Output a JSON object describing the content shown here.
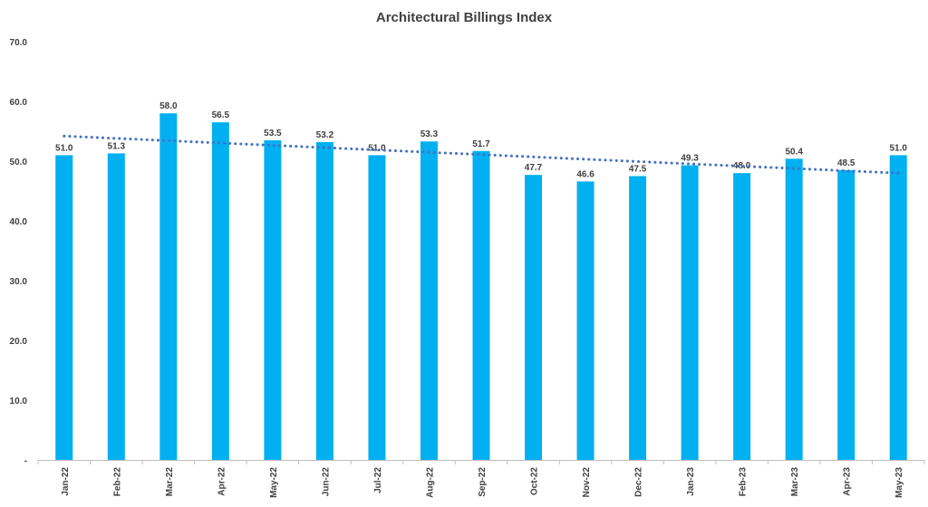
{
  "chart_data": {
    "type": "bar",
    "title": "Architectural Billings Index",
    "categories": [
      "Jan-22",
      "Feb-22",
      "Mar-22",
      "Apr-22",
      "May-22",
      "Jun-22",
      "Jul-22",
      "Aug-22",
      "Sep-22",
      "Oct-22",
      "Nov-22",
      "Dec-22",
      "Jan-23",
      "Feb-23",
      "Mar-23",
      "Apr-23",
      "May-23"
    ],
    "values": [
      51.0,
      51.3,
      58.0,
      56.5,
      53.5,
      53.2,
      51.0,
      53.3,
      51.7,
      47.7,
      46.6,
      47.5,
      49.3,
      48.0,
      50.4,
      48.5,
      51.0
    ],
    "value_labels": [
      "51.0",
      "51.3",
      "58.0",
      "56.5",
      "53.5",
      "53.2",
      "51.0",
      "53.3",
      "51.7",
      "47.7",
      "46.6",
      "47.5",
      "49.3",
      "48.0",
      "50.4",
      "48.5",
      "51.0"
    ],
    "y_ticks": [
      {
        "value": 0,
        "label": "-"
      },
      {
        "value": 10,
        "label": "10.0"
      },
      {
        "value": 20,
        "label": "20.0"
      },
      {
        "value": 30,
        "label": "30.0"
      },
      {
        "value": 40,
        "label": "40.0"
      },
      {
        "value": 50,
        "label": "50.0"
      },
      {
        "value": 60,
        "label": "60.0"
      },
      {
        "value": 70,
        "label": "70.0"
      }
    ],
    "ylim": [
      0,
      70
    ],
    "xlabel": "",
    "ylabel": "",
    "grid": false,
    "legend": "none",
    "trendline": {
      "type": "linear",
      "style": "dotted",
      "start_value": 54.2,
      "end_value": 48.0
    },
    "colors": {
      "bar": "#00B0F0",
      "trendline": "#4472C4",
      "text": "#404040",
      "axis": "#BFBFBF"
    }
  }
}
